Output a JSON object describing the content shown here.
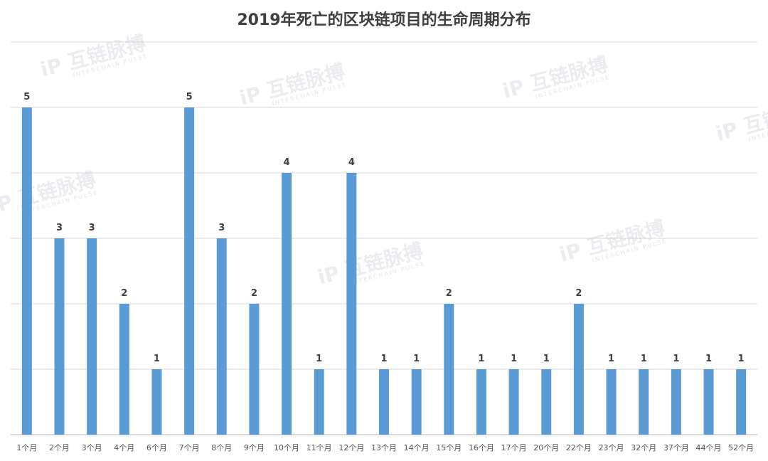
{
  "chart_data": {
    "type": "bar",
    "title": "2019年死亡的区块链项目的生命周期分布",
    "xlabel": "",
    "ylabel": "",
    "ylim": [
      0,
      5
    ],
    "grid": true,
    "color": "#5b9bd5",
    "categories": [
      "1个月",
      "2个月",
      "3个月",
      "4个月",
      "6个月",
      "7个月",
      "8个月",
      "9个月",
      "10个月",
      "11个月",
      "12个月",
      "13个月",
      "14个月",
      "15个月",
      "16个月",
      "17个月",
      "20个月",
      "22个月",
      "23个月",
      "32个月",
      "37个月",
      "44个月",
      "52个月"
    ],
    "values": [
      5,
      3,
      3,
      2,
      1,
      5,
      3,
      2,
      4,
      1,
      4,
      1,
      1,
      2,
      1,
      1,
      1,
      2,
      1,
      1,
      1,
      1,
      1
    ]
  },
  "watermark": {
    "text": "互链脉搏",
    "subtext": "INTERCHAIN PULSE"
  }
}
